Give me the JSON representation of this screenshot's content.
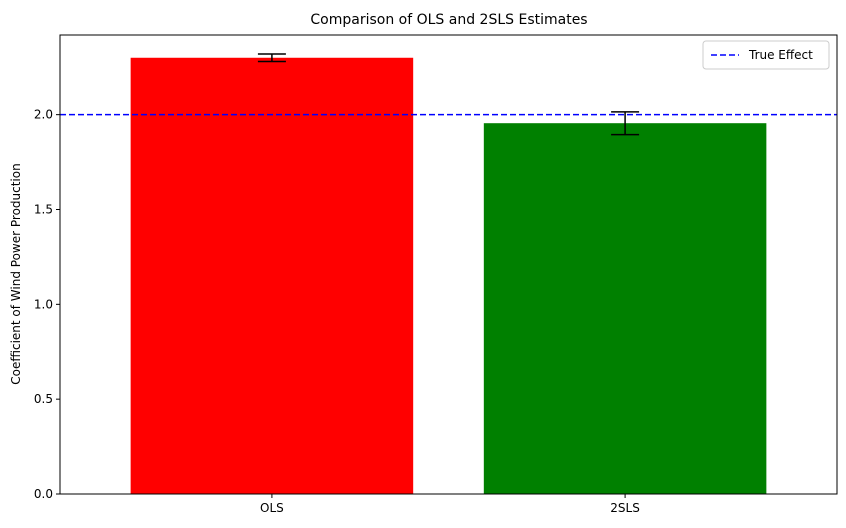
{
  "chart_data": {
    "type": "bar",
    "title": "Comparison of OLS and 2SLS Estimates",
    "xlabel": "",
    "ylabel": "Coefficient of Wind Power Production",
    "categories": [
      "OLS",
      "2SLS"
    ],
    "values": [
      2.3,
      1.955
    ],
    "errors": [
      0.02,
      0.06
    ],
    "colors": [
      "#ff0000",
      "#008000"
    ],
    "ylim": [
      0,
      2.42
    ],
    "yticks": [
      0.0,
      0.5,
      1.0,
      1.5,
      2.0
    ],
    "ytick_labels": [
      "0.0",
      "0.5",
      "1.0",
      "1.5",
      "2.0"
    ],
    "reference_line": {
      "label": "True Effect",
      "value": 2.0,
      "color": "#0000ff",
      "style": "dashed"
    },
    "legend": {
      "position": "top-right",
      "entries": [
        "True Effect"
      ]
    },
    "grid": false
  }
}
